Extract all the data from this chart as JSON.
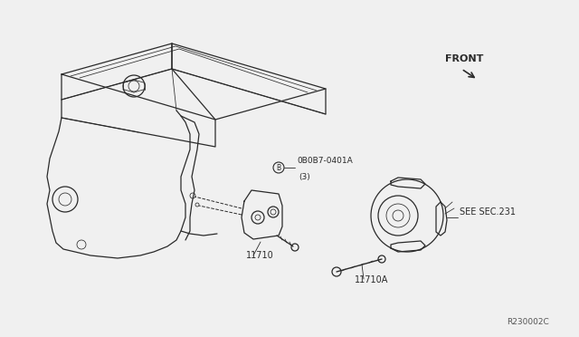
{
  "bg_color": "#f0f0f0",
  "line_color": "#2a2a2a",
  "text_color": "#2a2a2a",
  "part_labels": {
    "bolt_label": "0B0B7-0401A",
    "bolt_label2": "(3)",
    "bracket_label": "11710",
    "bolt2_label": "11710A",
    "sec_label": "SEE SEC.231",
    "front_label": "FRONT",
    "ref_label": "R230002C",
    "b_circle": "B"
  },
  "figsize": [
    6.4,
    3.72
  ],
  "dpi": 100
}
